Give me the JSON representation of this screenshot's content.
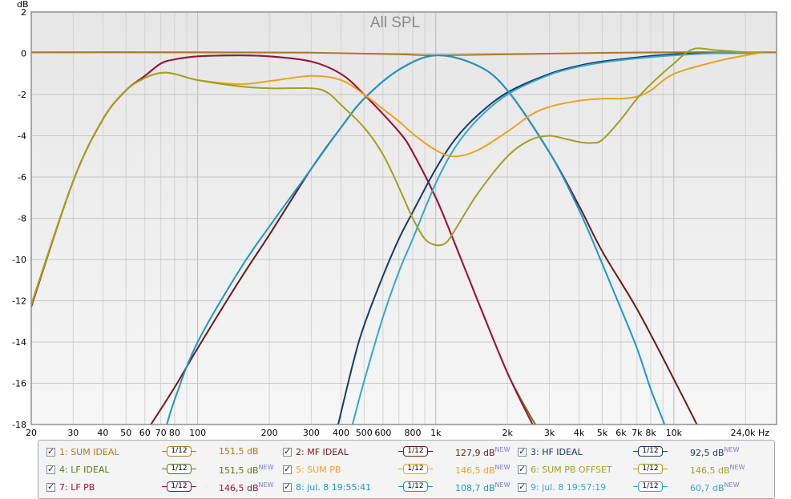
{
  "chart_data": {
    "type": "line",
    "title": "All SPL",
    "ylabel": "dB",
    "xunit": "Hz",
    "xscale": "log",
    "xlim": [
      20,
      27000
    ],
    "ylim": [
      -18,
      2
    ],
    "grid": true,
    "yticks": [
      2,
      0,
      -2,
      -4,
      -6,
      -8,
      -10,
      -12,
      -14,
      -16,
      -18
    ],
    "xticks": [
      {
        "v": 20,
        "label": "20"
      },
      {
        "v": 30,
        "label": "30"
      },
      {
        "v": 40,
        "label": "40"
      },
      {
        "v": 50,
        "label": "50"
      },
      {
        "v": 60,
        "label": "60"
      },
      {
        "v": 70,
        "label": "70"
      },
      {
        "v": 80,
        "label": "80"
      },
      {
        "v": 100,
        "label": "100"
      },
      {
        "v": 200,
        "label": "200"
      },
      {
        "v": 300,
        "label": "300"
      },
      {
        "v": 400,
        "label": "400"
      },
      {
        "v": 500,
        "label": "500"
      },
      {
        "v": 600,
        "label": "600"
      },
      {
        "v": 800,
        "label": "800"
      },
      {
        "v": 1000,
        "label": "1k"
      },
      {
        "v": 2000,
        "label": "2k"
      },
      {
        "v": 3000,
        "label": "3k"
      },
      {
        "v": 4000,
        "label": "4k"
      },
      {
        "v": 5000,
        "label": "5k"
      },
      {
        "v": 6000,
        "label": "6k"
      },
      {
        "v": 7000,
        "label": "7k"
      },
      {
        "v": 8000,
        "label": "8k"
      },
      {
        "v": 10000,
        "label": "10k"
      },
      {
        "v": 24000,
        "label": "24,0k Hz"
      }
    ],
    "series": [
      {
        "name": "SUM IDEAL",
        "color": "#b07820",
        "x": [
          20,
          100,
          300,
          700,
          1000,
          2000,
          5000,
          10000,
          20000,
          27000
        ],
        "y": [
          0.05,
          0.05,
          0.03,
          -0.05,
          -0.1,
          -0.05,
          0.02,
          0.05,
          0.05,
          0.05
        ]
      },
      {
        "name": "LF IDEAL",
        "color": "#5a7a10",
        "x": [
          20,
          30,
          40,
          50,
          60,
          70,
          80,
          100,
          150,
          200,
          300,
          400,
          500,
          700,
          800,
          1000,
          1200,
          1500,
          2000,
          2500,
          2700
        ],
        "y": [
          -12.2,
          -6.2,
          -3.2,
          -1.8,
          -1.1,
          -0.5,
          -0.3,
          -0.15,
          -0.1,
          -0.15,
          -0.4,
          -1.0,
          -2.0,
          -3.8,
          -4.8,
          -7.0,
          -9.2,
          -12.0,
          -15.5,
          -17.6,
          -18.2
        ]
      },
      {
        "name": "LF PB",
        "color": "#a01040",
        "x": [
          20,
          30,
          40,
          50,
          60,
          70,
          80,
          100,
          150,
          200,
          300,
          400,
          500,
          700,
          800,
          1000,
          1200,
          1500,
          2000,
          2500,
          2700
        ],
        "y": [
          -12.3,
          -6.2,
          -3.2,
          -1.8,
          -1.1,
          -0.5,
          -0.3,
          -0.15,
          -0.1,
          -0.15,
          -0.4,
          -1.0,
          -2.0,
          -3.8,
          -4.8,
          -7.0,
          -9.2,
          -12.0,
          -15.5,
          -17.8,
          -18.5
        ]
      },
      {
        "name": "MF IDEAL",
        "color": "#701818",
        "x": [
          62,
          80,
          100,
          150,
          200,
          300,
          400,
          500,
          700,
          1000,
          1500,
          2000,
          3000,
          4000,
          5000,
          7000,
          10000,
          12000,
          13000
        ],
        "y": [
          -18.2,
          -16.2,
          -14.3,
          -11.0,
          -8.8,
          -5.6,
          -3.6,
          -2.2,
          -0.8,
          -0.1,
          -0.6,
          -1.8,
          -4.8,
          -7.4,
          -9.6,
          -12.4,
          -15.8,
          -17.6,
          -18.4
        ]
      },
      {
        "name": "HF IDEAL",
        "color": "#183a66",
        "x": [
          380,
          450,
          500,
          600,
          700,
          800,
          1000,
          1200,
          1500,
          2000,
          3000,
          4000,
          5000,
          7000,
          10000,
          15000,
          20000,
          24000
        ],
        "y": [
          -18.5,
          -15.0,
          -13.2,
          -10.8,
          -9.0,
          -7.7,
          -5.6,
          -4.2,
          -3.0,
          -1.9,
          -1.0,
          -0.6,
          -0.4,
          -0.2,
          -0.05,
          0.0,
          0.0,
          0.05
        ]
      },
      {
        "name": "jul. 8 19:55:41",
        "color": "#1898c8",
        "x": [
          73,
          80,
          100,
          150,
          200,
          300,
          400,
          500,
          700,
          1000,
          1500,
          2000,
          3000,
          4000,
          5000,
          6000,
          7000,
          8000,
          9000,
          9500
        ],
        "y": [
          -18.3,
          -16.8,
          -14.0,
          -10.5,
          -8.4,
          -5.6,
          -3.6,
          -2.2,
          -0.8,
          -0.1,
          -0.6,
          -1.8,
          -4.8,
          -7.6,
          -10.2,
          -12.4,
          -14.3,
          -16.3,
          -17.8,
          -18.6
        ]
      },
      {
        "name": "jul. 8 19:57:19",
        "color": "#30a8d0",
        "x": [
          440,
          500,
          600,
          700,
          800,
          1000,
          1200,
          1500,
          2000,
          3000,
          4000,
          5000,
          7000,
          10000,
          15000,
          20000,
          24000
        ],
        "y": [
          -18.3,
          -15.9,
          -12.8,
          -10.6,
          -9.0,
          -6.3,
          -4.6,
          -3.2,
          -2.0,
          -1.05,
          -0.65,
          -0.45,
          -0.25,
          -0.1,
          0.0,
          0.0,
          0.05
        ]
      },
      {
        "name": "SUM PB",
        "color": "#f0a020",
        "x": [
          20,
          30,
          40,
          50,
          60,
          70,
          80,
          100,
          150,
          200,
          300,
          400,
          500,
          600,
          700,
          800,
          1000,
          1200,
          1500,
          2000,
          2500,
          3000,
          4000,
          5000,
          6000,
          7000,
          8000,
          10000,
          15000,
          20000,
          24000
        ],
        "y": [
          -12.2,
          -6.2,
          -3.2,
          -1.8,
          -1.2,
          -0.95,
          -1.0,
          -1.3,
          -1.5,
          -1.35,
          -1.1,
          -1.3,
          -2.0,
          -2.7,
          -3.3,
          -3.9,
          -4.7,
          -5.0,
          -4.7,
          -3.8,
          -3.0,
          -2.6,
          -2.3,
          -2.2,
          -2.2,
          -2.1,
          -1.8,
          -1.0,
          -0.4,
          -0.1,
          0.05
        ]
      },
      {
        "name": "SUM PB OFFSET",
        "color": "#a0a020",
        "x": [
          20,
          30,
          40,
          50,
          60,
          70,
          80,
          100,
          150,
          200,
          300,
          350,
          400,
          500,
          600,
          700,
          800,
          900,
          1000,
          1100,
          1200,
          1500,
          2000,
          2500,
          3000,
          3500,
          4000,
          4500,
          5000,
          6000,
          7000,
          8000,
          10000,
          12000,
          15000,
          20000,
          24000
        ],
        "y": [
          -12.2,
          -6.2,
          -3.2,
          -1.8,
          -1.2,
          -0.95,
          -1.0,
          -1.3,
          -1.6,
          -1.7,
          -1.7,
          -1.9,
          -2.5,
          -3.6,
          -4.9,
          -6.5,
          -8.0,
          -9.0,
          -9.3,
          -9.2,
          -8.6,
          -6.8,
          -5.0,
          -4.2,
          -4.0,
          -4.15,
          -4.3,
          -4.35,
          -4.2,
          -3.2,
          -2.2,
          -1.5,
          -0.5,
          0.2,
          0.15,
          0.05,
          0.05
        ]
      }
    ]
  },
  "legend": {
    "items": [
      {
        "label": "1: SUM IDEAL",
        "smoothing": "1/12",
        "level": "151,5 dB",
        "tag": "",
        "color": "#b07820"
      },
      {
        "label": "2: MF IDEAL",
        "smoothing": "1/12",
        "level": "127,9 dB",
        "tag": "NEW",
        "color": "#701818"
      },
      {
        "label": "3: HF IDEAL",
        "smoothing": "1/12",
        "level": "92,5 dB",
        "tag": "NEW",
        "color": "#183a66"
      },
      {
        "label": "4: LF IDEAL",
        "smoothing": "1/12",
        "level": "151,5 dB",
        "tag": "NEW",
        "color": "#5a7a10"
      },
      {
        "label": "5: SUM PB",
        "smoothing": "1/12",
        "level": "146,5 dB",
        "tag": "NEW",
        "color": "#f0a020"
      },
      {
        "label": "6: SUM PB OFFSET",
        "smoothing": "1/12",
        "level": "146,5 dB",
        "tag": "NEW",
        "color": "#a0a020"
      },
      {
        "label": "7: LF PB",
        "smoothing": "1/12",
        "level": "146,5 dB",
        "tag": "NEW",
        "color": "#a01040"
      },
      {
        "label": "8: jul. 8 19:55:41",
        "smoothing": "1/12",
        "level": "108,7 dB",
        "tag": "NEW",
        "color": "#1898c8"
      },
      {
        "label": "9: jul. 8 19:57:19",
        "smoothing": "1/12",
        "level": "60,7 dB",
        "tag": "NEW",
        "color": "#30a8d0"
      }
    ]
  }
}
